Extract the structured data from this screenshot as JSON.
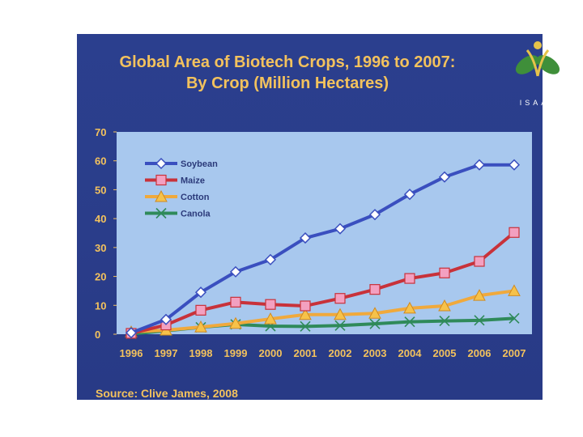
{
  "title_line1": "Global Area of Biotech Crops, 1996 to 2007:",
  "title_line2": "By Crop (Million Hectares)",
  "logo_text": "ISAAA",
  "source": "Source: Clive James, 2008",
  "colors": {
    "background": "#2a3d8a",
    "plot_area": "#a8c8ee",
    "text": "#f3c25d",
    "soybean": "#3a4fbf",
    "maize": "#c8323a",
    "cotton": "#f0a93c",
    "canola": "#2f8a5a"
  },
  "chart_data": {
    "type": "line",
    "title": "Global Area of Biotech Crops, 1996 to 2007: By Crop (Million Hectares)",
    "xlabel": "",
    "ylabel": "",
    "x": [
      "1996",
      "1997",
      "1998",
      "1999",
      "2000",
      "2001",
      "2002",
      "2003",
      "2004",
      "2005",
      "2006",
      "2007"
    ],
    "ylim": [
      0,
      70
    ],
    "yticks": [
      0,
      10,
      20,
      30,
      40,
      50,
      60,
      70
    ],
    "grid": false,
    "legend_position": "top-left",
    "series": [
      {
        "name": "Soybean",
        "marker": "diamond",
        "color": "#3a4fbf",
        "values": [
          0.5,
          5.1,
          14.5,
          21.6,
          25.8,
          33.3,
          36.5,
          41.4,
          48.4,
          54.4,
          58.6,
          58.6
        ]
      },
      {
        "name": "Maize",
        "marker": "square",
        "color": "#c8323a",
        "values": [
          0.3,
          3.2,
          8.3,
          11.1,
          10.3,
          9.8,
          12.4,
          15.5,
          19.3,
          21.2,
          25.2,
          35.2
        ]
      },
      {
        "name": "Cotton",
        "marker": "triangle",
        "color": "#f0a93c",
        "values": [
          0.8,
          1.4,
          2.5,
          3.7,
          5.3,
          6.8,
          6.8,
          7.2,
          9.0,
          9.8,
          13.4,
          15.0
        ]
      },
      {
        "name": "Canola",
        "marker": "x",
        "color": "#2f8a5a",
        "values": [
          0.1,
          1.2,
          2.4,
          3.4,
          2.8,
          2.7,
          3.0,
          3.6,
          4.3,
          4.6,
          4.8,
          5.5
        ]
      }
    ]
  }
}
